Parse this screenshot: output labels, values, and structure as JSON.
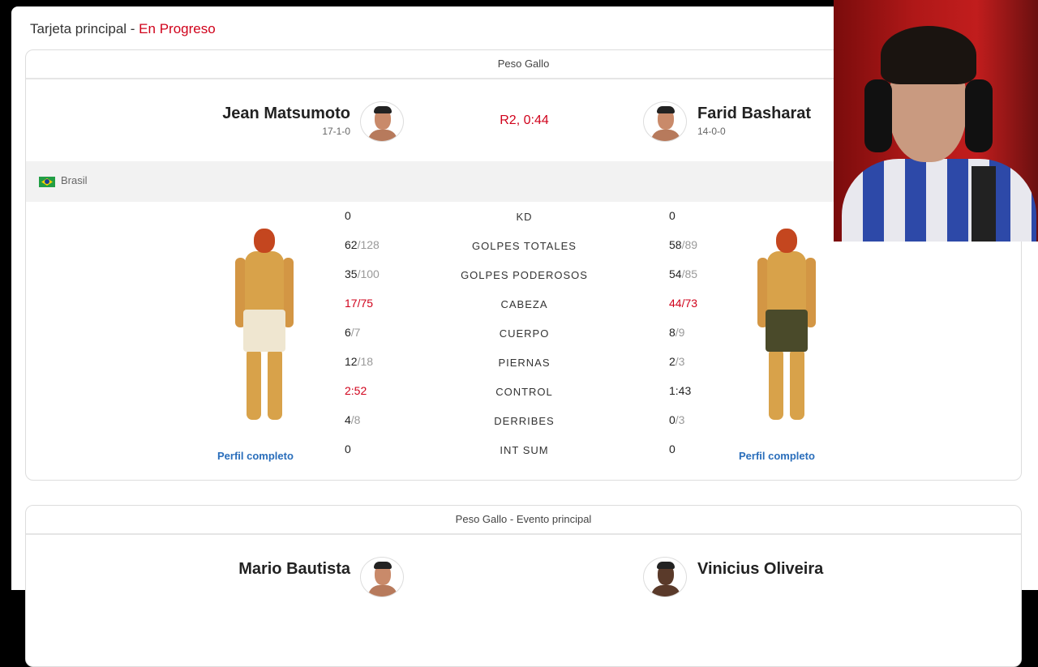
{
  "header": {
    "title": "Tarjeta principal",
    "separator": " - ",
    "status": "En Progreso"
  },
  "fight1": {
    "weight_class": "Peso Gallo",
    "status_time": "R2, 0:44",
    "left": {
      "name": "Jean Matsumoto",
      "record": "17-1-0",
      "country": "Brasil",
      "profile_link": "Perfil completo",
      "shorts_color": "#efe6d0"
    },
    "right": {
      "name": "Farid Basharat",
      "record": "14-0-0",
      "profile_link": "Perfil completo",
      "shorts_color": "#4a4a2a"
    },
    "stats": [
      {
        "label": "KD",
        "left": "0",
        "left_total": "",
        "right": "0",
        "right_total": "",
        "highlight": ""
      },
      {
        "label": "GOLPES TOTALES",
        "left": "62",
        "left_total": "/128",
        "right": "58",
        "right_total": "/89",
        "highlight": ""
      },
      {
        "label": "GOLPES PODEROSOS",
        "left": "35",
        "left_total": "/100",
        "right": "54",
        "right_total": "/85",
        "highlight": ""
      },
      {
        "label": "CABEZA",
        "left": "17",
        "left_total": "/75",
        "right": "44",
        "right_total": "/73",
        "highlight": "both"
      },
      {
        "label": "CUERPO",
        "left": "6",
        "left_total": "/7",
        "right": "8",
        "right_total": "/9",
        "highlight": ""
      },
      {
        "label": "PIERNAS",
        "left": "12",
        "left_total": "/18",
        "right": "2",
        "right_total": "/3",
        "highlight": ""
      },
      {
        "label": "CONTROL",
        "left": "2:52",
        "left_total": "",
        "right": "1:43",
        "right_total": "",
        "highlight": "left"
      },
      {
        "label": "DERRIBES",
        "left": "4",
        "left_total": "/8",
        "right": "0",
        "right_total": "/3",
        "highlight": ""
      },
      {
        "label": "INT SUM",
        "left": "0",
        "left_total": "",
        "right": "0",
        "right_total": "",
        "highlight": ""
      }
    ],
    "expand_icon": "chevron-up-icon"
  },
  "fight2": {
    "weight_class": "Peso Gallo - Evento principal",
    "left": {
      "name": "Mario Bautista"
    },
    "right": {
      "name": "Vinicius Oliveira"
    }
  },
  "colors": {
    "accent": "#d0021b",
    "link": "#2a6ebb"
  }
}
